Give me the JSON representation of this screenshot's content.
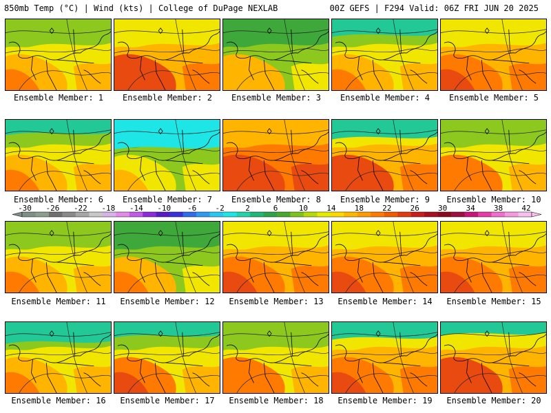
{
  "header": {
    "title_left": "850mb Temp (°C) | Wind (kts) | College of DuPage NEXLAB",
    "title_right": "00Z GEFS | F294 Valid: 06Z FRI JUN 20 2025"
  },
  "panels": [
    {
      "label": "Ensemble Member: 1",
      "warmth": 0.45,
      "cold_north": 0.0
    },
    {
      "label": "Ensemble Member: 2",
      "warmth": 0.75,
      "cold_north": 0.0
    },
    {
      "label": "Ensemble Member: 3",
      "warmth": 0.38,
      "cold_north": 0.0
    },
    {
      "label": "Ensemble Member: 4",
      "warmth": 0.5,
      "cold_north": 0.4
    },
    {
      "label": "Ensemble Member: 5",
      "warmth": 0.7,
      "cold_north": 0.0
    },
    {
      "label": "Ensemble Member: 6",
      "warmth": 0.5,
      "cold_north": 0.3
    },
    {
      "label": "Ensemble Member: 7",
      "warmth": 0.3,
      "cold_north": 1.0
    },
    {
      "label": "Ensemble Member: 8",
      "warmth": 0.85,
      "cold_north": 0.0
    },
    {
      "label": "Ensemble Member: 9",
      "warmth": 0.75,
      "cold_north": 0.5
    },
    {
      "label": "Ensemble Member: 10",
      "warmth": 0.55,
      "cold_north": 0.0
    },
    {
      "label": "Ensemble Member: 11",
      "warmth": 0.45,
      "cold_north": 0.0
    },
    {
      "label": "Ensemble Member: 12",
      "warmth": 0.4,
      "cold_north": 0.0
    },
    {
      "label": "Ensemble Member: 13",
      "warmth": 0.68,
      "cold_north": 0.0
    },
    {
      "label": "Ensemble Member: 14",
      "warmth": 0.68,
      "cold_north": 0.0
    },
    {
      "label": "Ensemble Member: 15",
      "warmth": 0.7,
      "cold_north": 0.0
    },
    {
      "label": "Ensemble Member: 16",
      "warmth": 0.5,
      "cold_north": 0.6
    },
    {
      "label": "Ensemble Member: 17",
      "warmth": 0.6,
      "cold_north": 0.3
    },
    {
      "label": "Ensemble Member: 18",
      "warmth": 0.58,
      "cold_north": 0.0
    },
    {
      "label": "Ensemble Member: 19",
      "warmth": 0.7,
      "cold_north": 0.4
    },
    {
      "label": "Ensemble Member: 20",
      "warmth": 0.75,
      "cold_north": 0.2
    }
  ],
  "colorbar": {
    "ticks": [
      "-30",
      "-26",
      "-22",
      "-18",
      "-14",
      "-10",
      "-6",
      "-2",
      "2",
      "6",
      "10",
      "14",
      "18",
      "22",
      "26",
      "30",
      "34",
      "38",
      "42"
    ],
    "colors": [
      "#7f8f86",
      "#8c9e8c",
      "#707070",
      "#8a8a8a",
      "#a7a7a7",
      "#c8c8c8",
      "#d6b4e8",
      "#e18ae8",
      "#c25ae8",
      "#8b2cd9",
      "#5a1bc7",
      "#3a31d8",
      "#2f6ee8",
      "#2e9bf0",
      "#28c8f0",
      "#1ee6e6",
      "#22d2aa",
      "#1fb87a",
      "#2ea34a",
      "#4aa82e",
      "#7fc21e",
      "#b7d90a",
      "#e6ea00",
      "#ffd800",
      "#ffb800",
      "#ff9a00",
      "#ff7a00",
      "#f05a00",
      "#e03c10",
      "#c81e1e",
      "#a80f20",
      "#8c0a20",
      "#9b1040",
      "#c8157a",
      "#e63ca8",
      "#f06ecc",
      "#f59ae0",
      "#f8c0ee"
    ]
  },
  "palette": {
    "cold": "#1ee6e6",
    "cool": "#22c896",
    "mid": "#3ea83a",
    "mild": "#8cc81e",
    "warm": "#f0e600",
    "hot": "#ffb400",
    "veryhot": "#ff7a00",
    "extreme": "#e84a10"
  }
}
